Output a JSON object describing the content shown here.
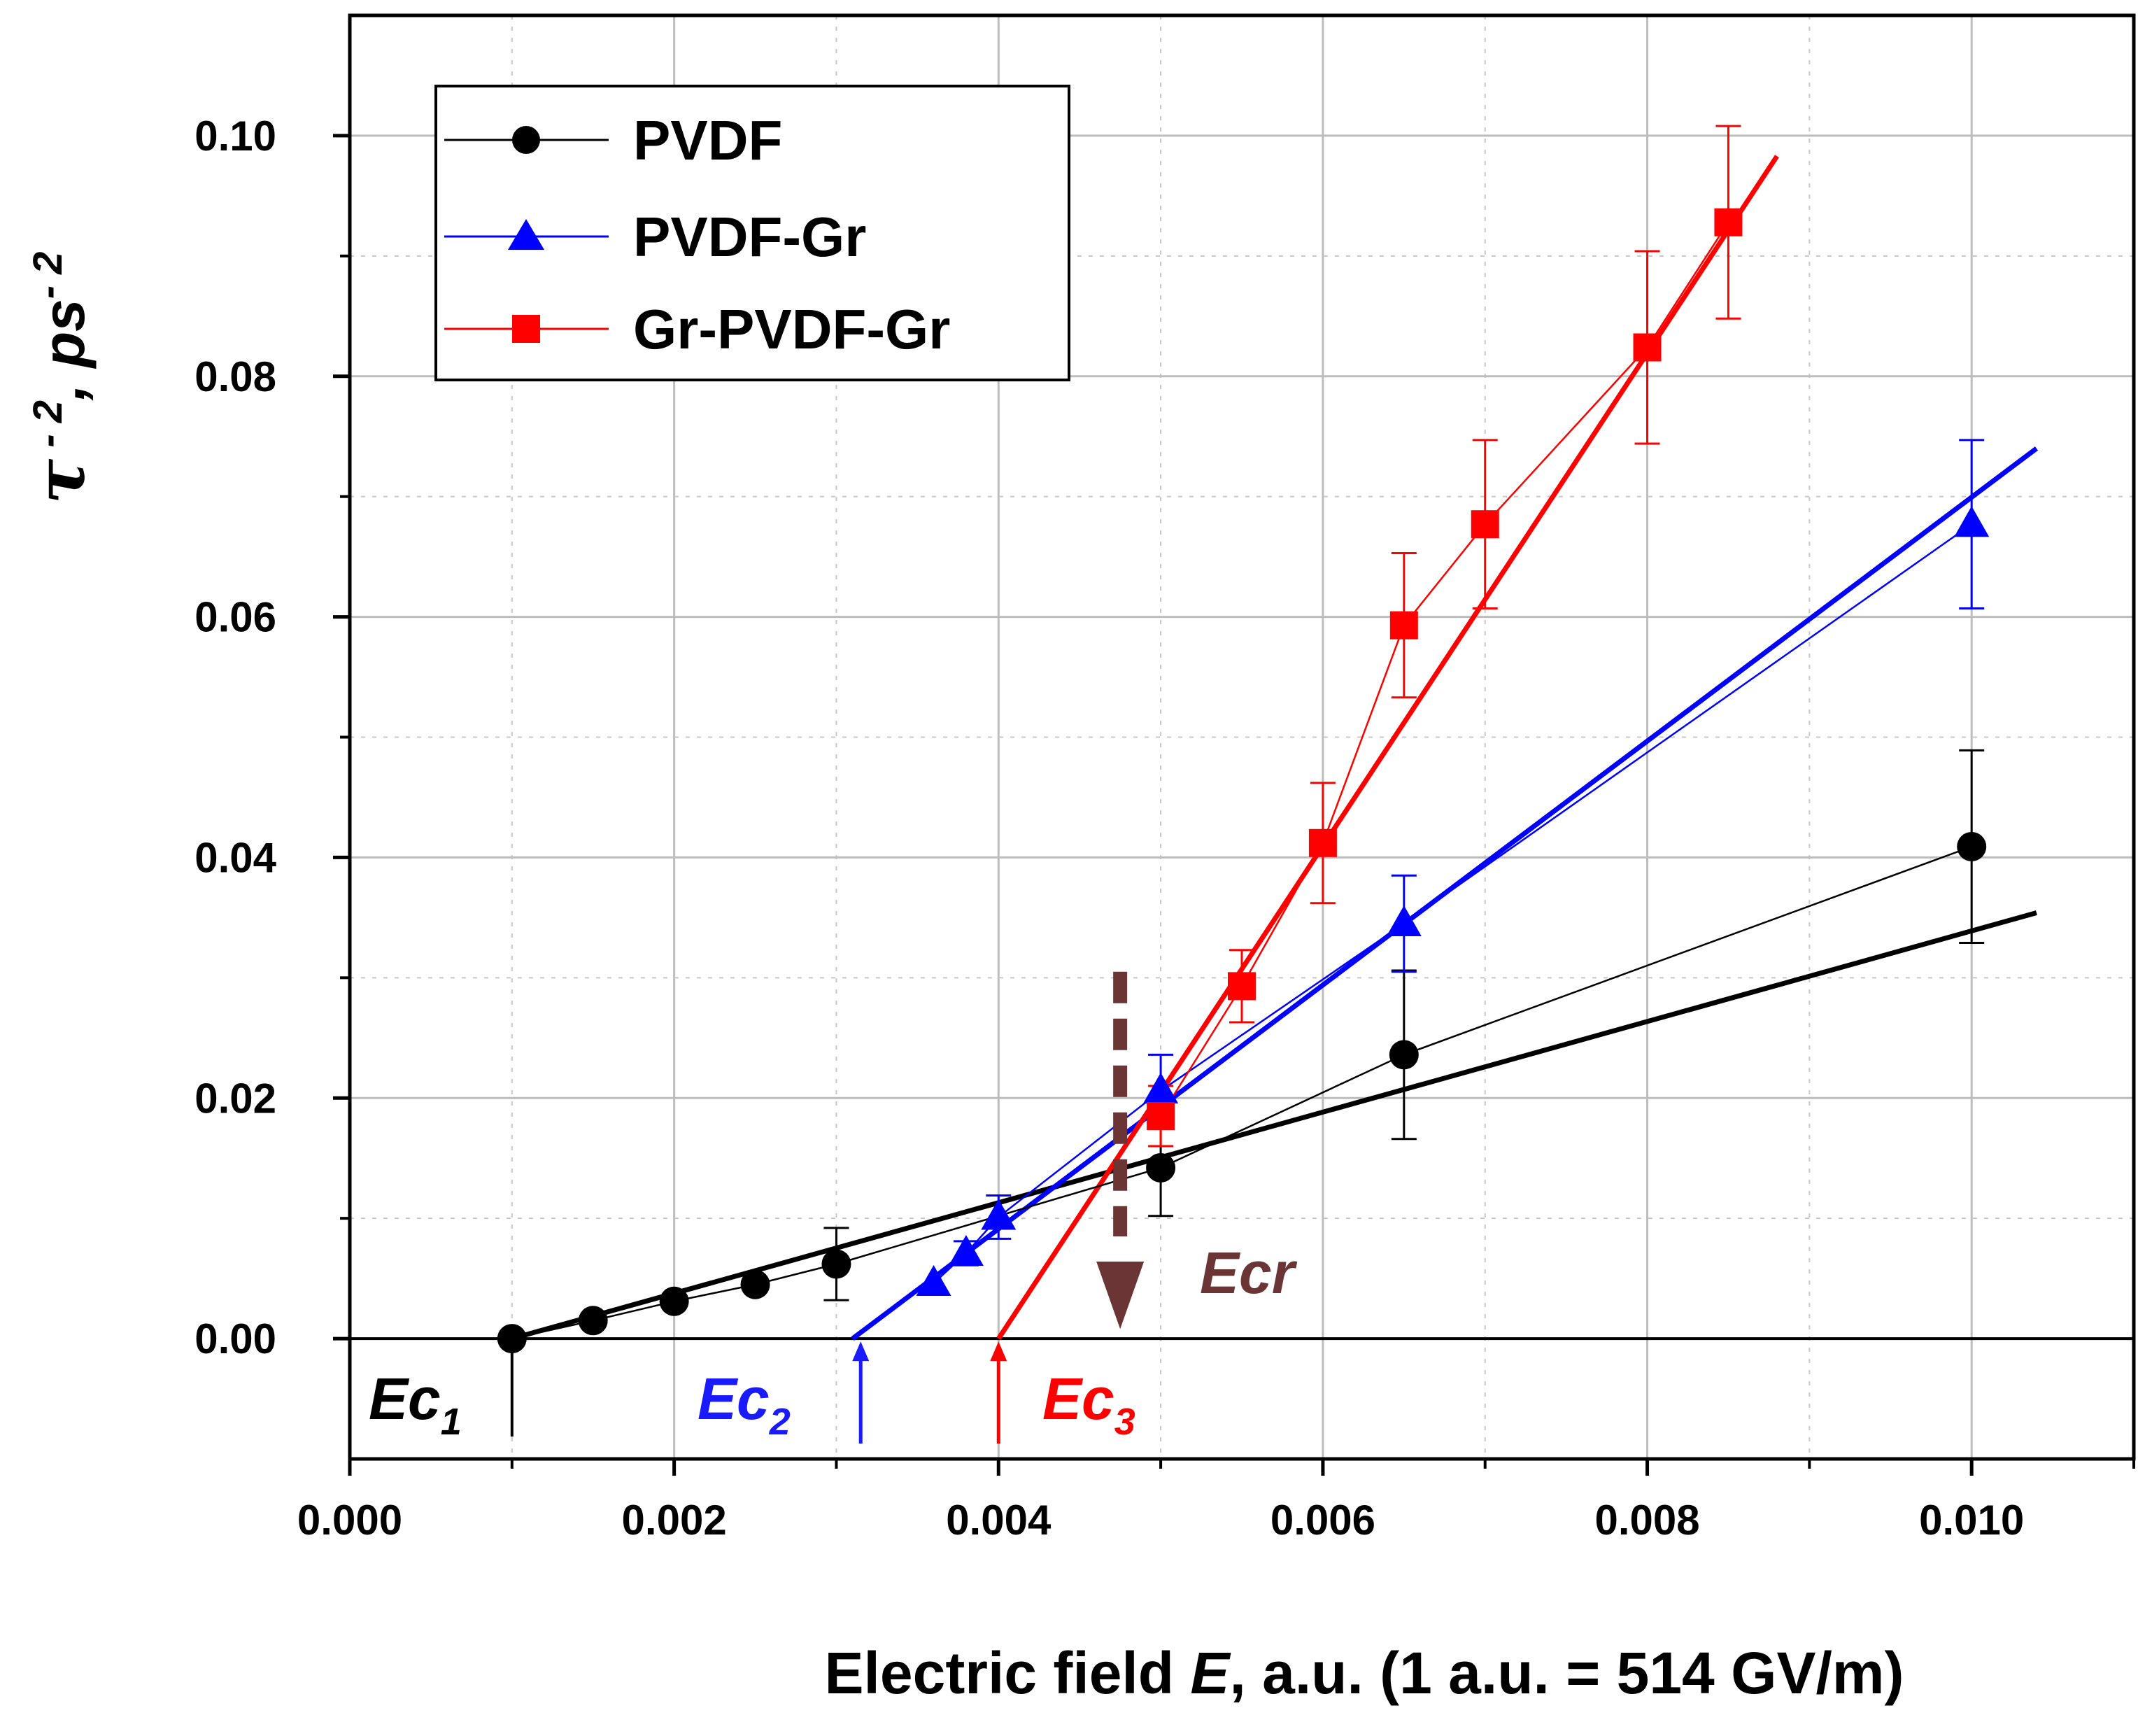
{
  "chart_data": {
    "type": "scatter",
    "xlabel": {
      "prefix": "Electric field ",
      "var": "E",
      "suffix": ", a.u. (1 a.u. = 514 GV/m)"
    },
    "ylabel": {
      "tau": "τ",
      "sup1": " - 2",
      "mid": ", ps",
      "sup2": "- 2"
    },
    "xlim": [
      0.0,
      0.011
    ],
    "ylim": [
      -0.01,
      0.11
    ],
    "x_ticks": [
      {
        "value": 0.0,
        "label": "0.000"
      },
      {
        "value": 0.002,
        "label": "0.002"
      },
      {
        "value": 0.004,
        "label": "0.004"
      },
      {
        "value": 0.006,
        "label": "0.006"
      },
      {
        "value": 0.008,
        "label": "0.008"
      },
      {
        "value": 0.01,
        "label": "0.010"
      }
    ],
    "y_ticks": [
      {
        "value": 0.0,
        "label": "0.00"
      },
      {
        "value": 0.02,
        "label": "0.02"
      },
      {
        "value": 0.04,
        "label": "0.04"
      },
      {
        "value": 0.06,
        "label": "0.06"
      },
      {
        "value": 0.08,
        "label": "0.08"
      },
      {
        "value": 0.1,
        "label": "0.10"
      }
    ],
    "minor_x": [
      0.001,
      0.003,
      0.005,
      0.007,
      0.009,
      0.011
    ],
    "minor_y": [
      0.01,
      0.03,
      0.05,
      0.07,
      0.09
    ],
    "grid": true,
    "legend_position": "top-left",
    "series": [
      {
        "name": "PVDF",
        "color": "#000000",
        "marker": "circle",
        "x": [
          0.001,
          0.0015,
          0.002,
          0.0025,
          0.003,
          0.005,
          0.0065,
          0.01
        ],
        "y": [
          0.0,
          0.0015,
          0.0031,
          0.0045,
          0.0062,
          0.0142,
          0.0236,
          0.0409
        ],
        "err": [
          0.0,
          0.0,
          0.0,
          0.0,
          0.003,
          0.004,
          0.007,
          0.008
        ],
        "fit": [
          [
            0.001,
            0.0
          ],
          [
            0.0104,
            0.0354
          ]
        ]
      },
      {
        "name": "PVDF-Gr",
        "color": "#0000ff",
        "marker": "triangle",
        "x": [
          0.0036,
          0.0038,
          0.004,
          0.005,
          0.0065,
          0.01
        ],
        "y": [
          0.0046,
          0.0071,
          0.0101,
          0.0206,
          0.0345,
          0.0677
        ],
        "err": [
          0.0,
          0.001,
          0.0018,
          0.003,
          0.004,
          0.007
        ],
        "fit": [
          [
            0.0031,
            0.0
          ],
          [
            0.0104,
            0.074
          ]
        ]
      },
      {
        "name": "Gr-PVDF-Gr",
        "color": "#ff0000",
        "marker": "square",
        "x": [
          0.005,
          0.0055,
          0.006,
          0.0065,
          0.007,
          0.008,
          0.0085
        ],
        "y": [
          0.0185,
          0.0293,
          0.0412,
          0.0593,
          0.0677,
          0.0824,
          0.0928
        ],
        "err": [
          0.0025,
          0.003,
          0.005,
          0.006,
          0.007,
          0.008,
          0.008
        ],
        "fit": [
          [
            0.004,
            0.0
          ],
          [
            0.0088,
            0.0983
          ]
        ]
      }
    ],
    "annotations": [
      {
        "base": "Ec",
        "sub": "1",
        "color": "#000000",
        "x": 0.001
      },
      {
        "base": "Ec",
        "sub": "2",
        "color": "#1a1aff",
        "x": 0.00315
      },
      {
        "base": "Ec",
        "sub": "3",
        "color": "#ff0000",
        "x": 0.004
      },
      {
        "base": "Ecr",
        "sub": "",
        "color": "#6b3535",
        "x": 0.00475
      }
    ]
  }
}
